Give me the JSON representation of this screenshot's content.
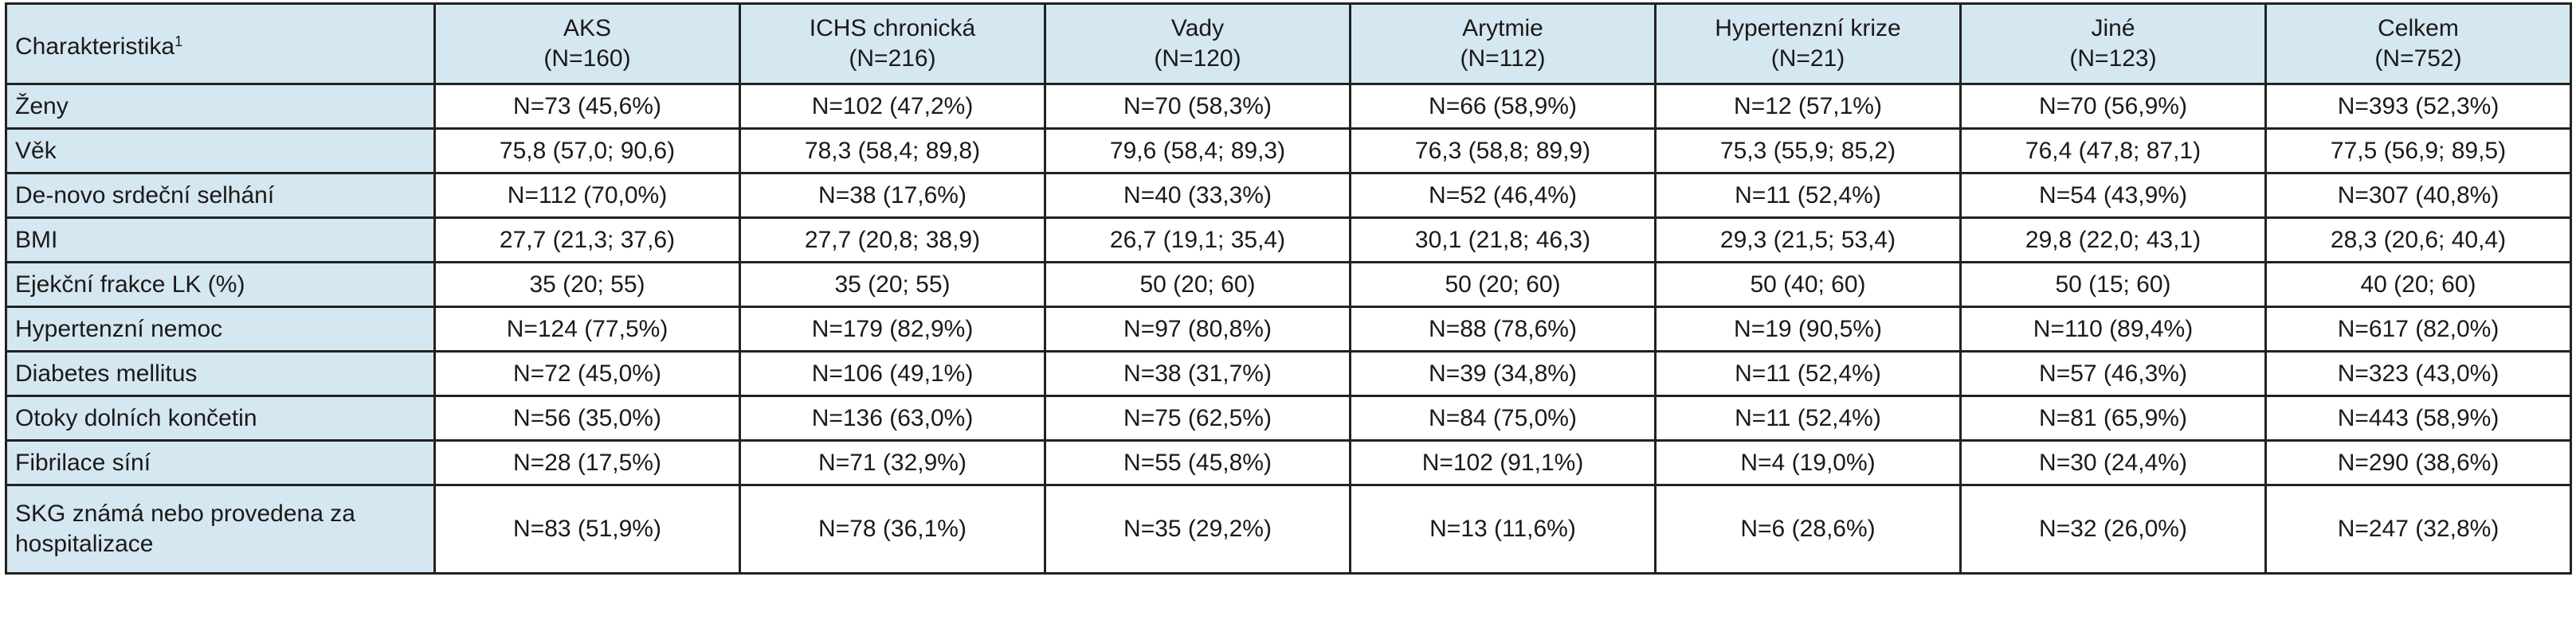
{
  "table": {
    "corner_label": "Charakteristika",
    "corner_footnote": "1",
    "columns": [
      {
        "name": "AKS",
        "n": "(N=160)"
      },
      {
        "name": "ICHS chronická",
        "n": "(N=216)"
      },
      {
        "name": "Vady",
        "n": "(N=120)"
      },
      {
        "name": "Arytmie",
        "n": "(N=112)"
      },
      {
        "name": "Hypertenzní krize",
        "n": "(N=21)"
      },
      {
        "name": "Jiné",
        "n": "(N=123)"
      },
      {
        "name": "Celkem",
        "n": "(N=752)"
      }
    ],
    "rows": [
      {
        "label": "Ženy",
        "values": [
          "N=73 (45,6%)",
          "N=102 (47,2%)",
          "N=70 (58,3%)",
          "N=66 (58,9%)",
          "N=12 (57,1%)",
          "N=70 (56,9%)",
          "N=393 (52,3%)"
        ]
      },
      {
        "label": "Věk",
        "values": [
          "75,8 (57,0; 90,6)",
          "78,3 (58,4; 89,8)",
          "79,6 (58,4; 89,3)",
          "76,3 (58,8; 89,9)",
          "75,3 (55,9; 85,2)",
          "76,4 (47,8; 87,1)",
          "77,5 (56,9; 89,5)"
        ]
      },
      {
        "label": "De-novo srdeční selhání",
        "values": [
          "N=112 (70,0%)",
          "N=38 (17,6%)",
          "N=40 (33,3%)",
          "N=52 (46,4%)",
          "N=11 (52,4%)",
          "N=54 (43,9%)",
          "N=307 (40,8%)"
        ]
      },
      {
        "label": "BMI",
        "values": [
          "27,7 (21,3; 37,6)",
          "27,7 (20,8; 38,9)",
          "26,7 (19,1; 35,4)",
          "30,1 (21,8; 46,3)",
          "29,3 (21,5; 53,4)",
          "29,8 (22,0; 43,1)",
          "28,3 (20,6; 40,4)"
        ]
      },
      {
        "label": "Ejekční frakce LK (%)",
        "values": [
          "35 (20; 55)",
          "35 (20; 55)",
          "50 (20; 60)",
          "50 (20; 60)",
          "50 (40; 60)",
          "50 (15; 60)",
          "40 (20; 60)"
        ]
      },
      {
        "label": "Hypertenzní nemoc",
        "values": [
          "N=124 (77,5%)",
          "N=179 (82,9%)",
          "N=97 (80,8%)",
          "N=88 (78,6%)",
          "N=19 (90,5%)",
          "N=110 (89,4%)",
          "N=617 (82,0%)"
        ]
      },
      {
        "label": "Diabetes mellitus",
        "values": [
          "N=72 (45,0%)",
          "N=106 (49,1%)",
          "N=38 (31,7%)",
          "N=39 (34,8%)",
          "N=11 (52,4%)",
          "N=57 (46,3%)",
          "N=323 (43,0%)"
        ]
      },
      {
        "label": "Otoky dolních končetin",
        "values": [
          "N=56 (35,0%)",
          "N=136 (63,0%)",
          "N=75 (62,5%)",
          "N=84 (75,0%)",
          "N=11 (52,4%)",
          "N=81 (65,9%)",
          "N=443 (58,9%)"
        ]
      },
      {
        "label": "Fibrilace síní",
        "values": [
          "N=28 (17,5%)",
          "N=71 (32,9%)",
          "N=55 (45,8%)",
          "N=102 (91,1%)",
          "N=4 (19,0%)",
          "N=30 (24,4%)",
          "N=290 (38,6%)"
        ]
      },
      {
        "label": "SKG známá nebo provedena za hospitalizace",
        "values": [
          "N=83 (51,9%)",
          "N=78 (36,1%)",
          "N=35 (29,2%)",
          "N=13 (11,6%)",
          "N=6 (28,6%)",
          "N=32 (26,0%)",
          "N=247 (32,8%)"
        ]
      }
    ]
  }
}
